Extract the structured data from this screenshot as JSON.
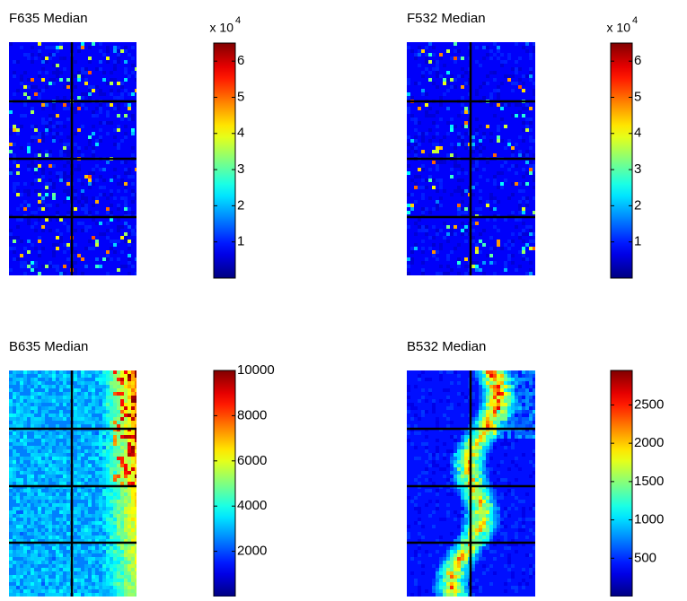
{
  "chart_data": [
    {
      "type": "heatmap",
      "title": "F635 Median",
      "colormap": "jet",
      "colorbar_exponent": {
        "base": "x 10",
        "power": "4"
      },
      "ylim": [
        0,
        65000
      ],
      "yticks": [
        {
          "value": 10000,
          "label": "1"
        },
        {
          "value": 20000,
          "label": "2"
        },
        {
          "value": 30000,
          "label": "3"
        },
        {
          "value": 40000,
          "label": "4"
        },
        {
          "value": 50000,
          "label": "5"
        },
        {
          "value": 60000,
          "label": "6"
        }
      ]
    },
    {
      "type": "heatmap",
      "title": "F532 Median",
      "colormap": "jet",
      "colorbar_exponent": {
        "base": "x 10",
        "power": "4"
      },
      "ylim": [
        0,
        65000
      ],
      "yticks": [
        {
          "value": 10000,
          "label": "1"
        },
        {
          "value": 20000,
          "label": "2"
        },
        {
          "value": 30000,
          "label": "3"
        },
        {
          "value": 40000,
          "label": "4"
        },
        {
          "value": 50000,
          "label": "5"
        },
        {
          "value": 60000,
          "label": "6"
        }
      ]
    },
    {
      "type": "heatmap",
      "title": "B635 Median",
      "colormap": "jet",
      "ylim": [
        0,
        10000
      ],
      "yticks": [
        2000,
        4000,
        6000,
        8000,
        10000
      ]
    },
    {
      "type": "heatmap",
      "title": "B532 Median",
      "colormap": "jet",
      "ylim": [
        0,
        2950
      ],
      "yticks": [
        500,
        1000,
        1500,
        2000,
        2500
      ]
    }
  ]
}
